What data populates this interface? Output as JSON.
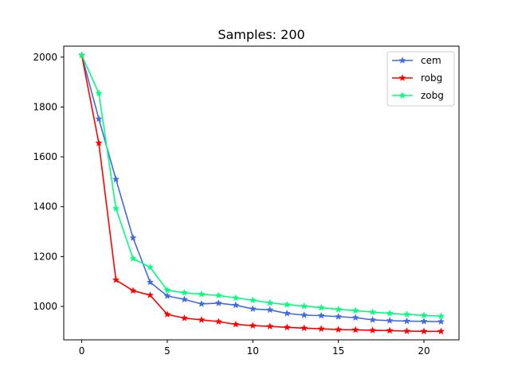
{
  "chart_data": {
    "type": "line",
    "title": "Samples: 200",
    "xlabel": "",
    "ylabel": "",
    "xlim": [
      -1.05,
      22.05
    ],
    "ylim": [
      866,
      2044
    ],
    "xticks": [
      0,
      5,
      10,
      15,
      20
    ],
    "yticks": [
      1000,
      1200,
      1400,
      1600,
      1800,
      2000
    ],
    "x": [
      0,
      1,
      2,
      3,
      4,
      5,
      6,
      7,
      8,
      9,
      10,
      11,
      12,
      13,
      14,
      15,
      16,
      17,
      18,
      19,
      20,
      21
    ],
    "grid": false,
    "legend_position": "top-right",
    "marker": "star",
    "series": [
      {
        "name": "cem",
        "color": "#4169e1",
        "values": [
          2008,
          1752,
          1510,
          1275,
          1097,
          1042,
          1028,
          1010,
          1013,
          1005,
          990,
          986,
          972,
          965,
          963,
          959,
          955,
          946,
          943,
          941,
          940,
          939
        ]
      },
      {
        "name": "robg",
        "color": "#ff0000",
        "values": [
          2008,
          1655,
          1106,
          1063,
          1045,
          968,
          953,
          946,
          939,
          928,
          923,
          920,
          916,
          913,
          910,
          907,
          906,
          904,
          903,
          901,
          900,
          900
        ]
      },
      {
        "name": "zobg",
        "color": "#00ff7f",
        "values": [
          2008,
          1855,
          1393,
          1192,
          1157,
          1065,
          1055,
          1049,
          1044,
          1034,
          1025,
          1014,
          1007,
          1001,
          995,
          988,
          983,
          977,
          972,
          968,
          964,
          961
        ]
      }
    ]
  }
}
